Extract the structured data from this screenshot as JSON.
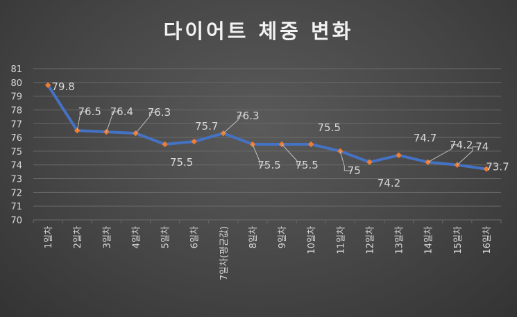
{
  "chart_data": {
    "type": "line",
    "title": "다이어트 체중 변화",
    "categories": [
      "1일차",
      "2일차",
      "3일차",
      "4일차",
      "5일차",
      "6일차",
      "7일차(평균값)",
      "8일차",
      "9일차",
      "10일차",
      "11일차",
      "12일차",
      "13일차",
      "14일차",
      "15일차",
      "16일차"
    ],
    "values": [
      79.8,
      76.5,
      76.4,
      76.3,
      75.5,
      75.7,
      76.3,
      75.5,
      75.5,
      75.5,
      75,
      74.2,
      74.7,
      74.2,
      74,
      73.7
    ],
    "data_labels": [
      "79.8",
      "76.5",
      "76.4",
      "76.3",
      "75.5",
      "75.7",
      "76.3",
      "75.5",
      "75.5",
      "75.5",
      "75",
      "74.2",
      "74.7",
      "74.2",
      "74",
      "73.7"
    ],
    "y_ticks": [
      "70",
      "71",
      "72",
      "73",
      "74",
      "75",
      "76",
      "77",
      "78",
      "79",
      "80",
      "81"
    ],
    "ylim": [
      70,
      81
    ],
    "grid": true,
    "legend": "none",
    "colors": {
      "line": "#4472c4",
      "marker": "#ed7d31",
      "text": "#d9d9d9",
      "grid": "#6a6a6a"
    }
  }
}
